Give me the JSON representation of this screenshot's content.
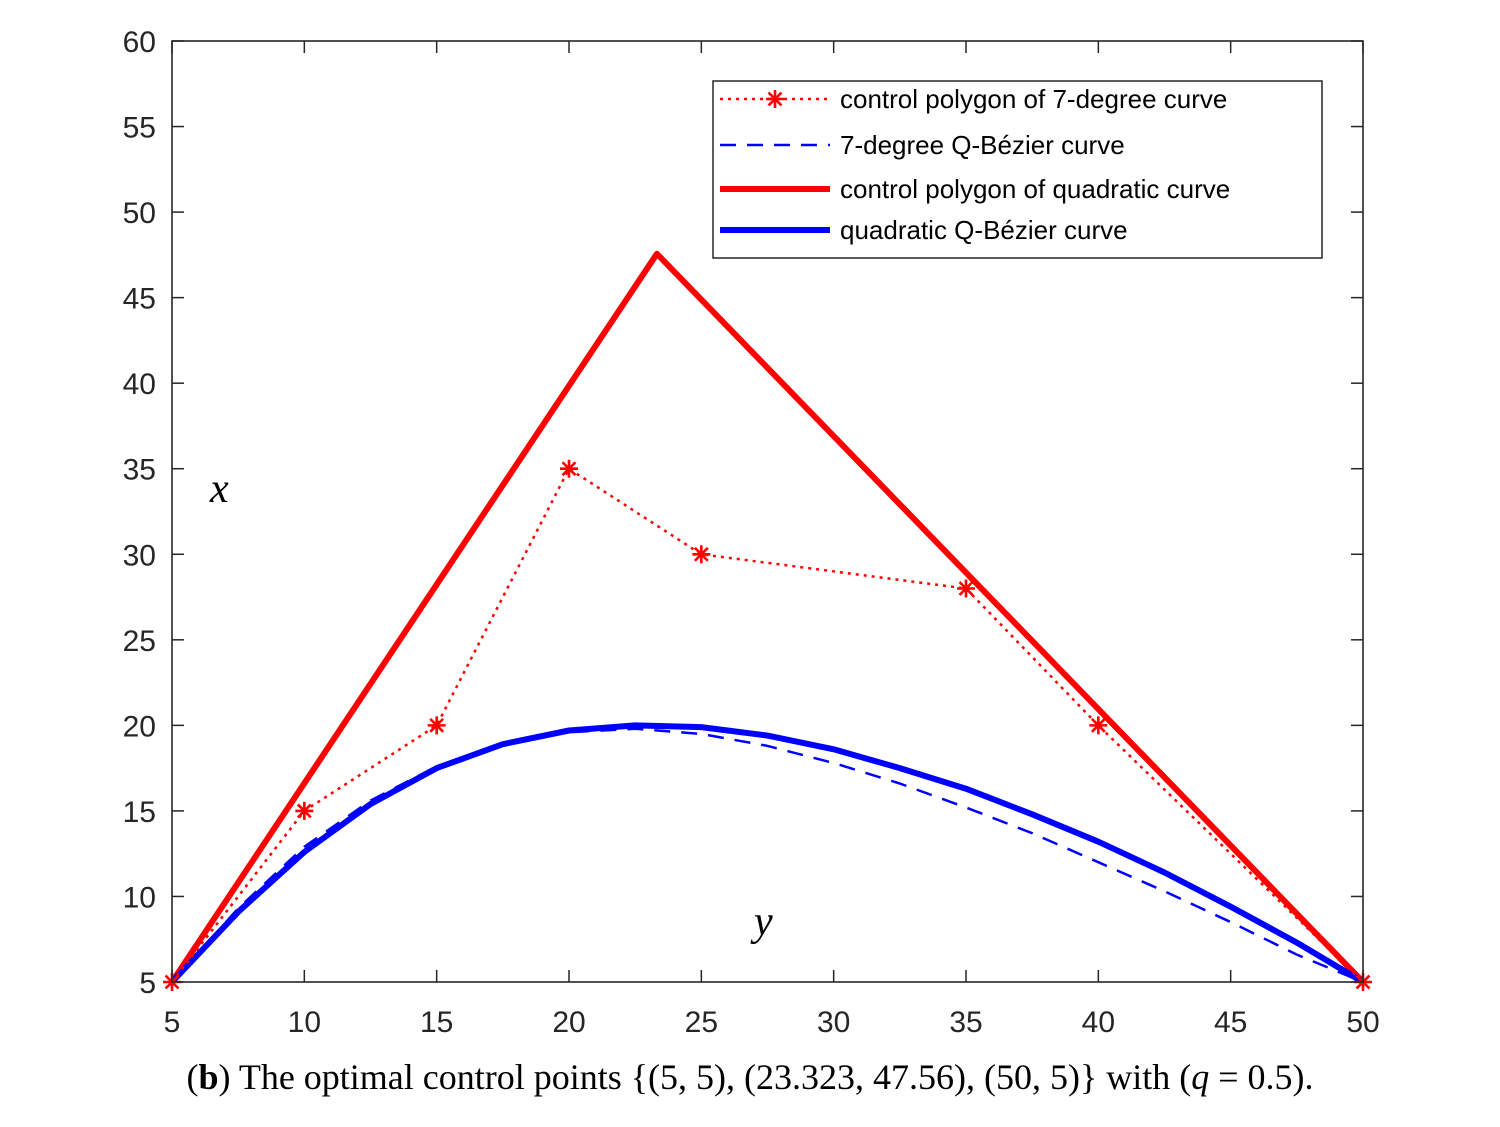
{
  "chart_data": {
    "type": "line",
    "title": "",
    "xlim": [
      5,
      50
    ],
    "ylim": [
      5,
      60
    ],
    "x_ticks": [
      5,
      10,
      15,
      20,
      25,
      30,
      35,
      40,
      45,
      50
    ],
    "y_ticks": [
      5,
      10,
      15,
      20,
      25,
      30,
      35,
      40,
      45,
      50,
      55,
      60
    ],
    "x_tick_labels": [
      "5",
      "10",
      "15",
      "20",
      "25",
      "30",
      "35",
      "40",
      "45",
      "50"
    ],
    "y_tick_labels": [
      "5",
      "10",
      "15",
      "20",
      "25",
      "30",
      "35",
      "40",
      "45",
      "50",
      "55",
      "60"
    ],
    "xlabel": "y",
    "ylabel": "x",
    "legend_position": "top-right",
    "series": [
      {
        "name": "control polygon of 7-degree curve",
        "style": "dotted",
        "marker": "asterisk",
        "color": "#ff0000",
        "x": [
          5,
          10,
          15,
          20,
          25,
          35,
          40,
          50
        ],
        "y": [
          5,
          15,
          20,
          35,
          30,
          28,
          20,
          5
        ]
      },
      {
        "name": "7-degree Q-Bézier curve",
        "style": "dashed",
        "color": "#0000ff",
        "x": [
          5,
          7.5,
          10,
          12.5,
          15,
          17.5,
          20,
          22.5,
          25,
          27.5,
          30,
          32.5,
          35,
          37.5,
          40,
          42.5,
          45,
          47.5,
          50
        ],
        "y": [
          5,
          9.3,
          12.9,
          15.6,
          17.6,
          18.9,
          19.6,
          19.8,
          19.5,
          18.8,
          17.8,
          16.6,
          15.2,
          13.7,
          12.0,
          10.3,
          8.5,
          6.6,
          5
        ]
      },
      {
        "name": "control polygon of quadratic curve",
        "style": "solid-thick",
        "color": "#ff0000",
        "x": [
          5,
          23.323,
          50
        ],
        "y": [
          5,
          47.56,
          5
        ]
      },
      {
        "name": "quadratic Q-Bézier curve",
        "style": "solid-thick",
        "color": "#0000ff",
        "x": [
          5,
          7.5,
          10,
          12.5,
          15,
          17.5,
          20,
          22.5,
          25,
          27.5,
          30,
          32.5,
          35,
          37.5,
          40,
          42.5,
          45,
          47.5,
          50
        ],
        "y": [
          5,
          9.1,
          12.6,
          15.4,
          17.5,
          18.9,
          19.7,
          20.0,
          19.9,
          19.4,
          18.6,
          17.5,
          16.3,
          14.8,
          13.2,
          11.4,
          9.4,
          7.3,
          5
        ]
      }
    ]
  },
  "caption": {
    "open": "(",
    "label": "b",
    "text": ") The optimal control points {(5, 5), (23.323, 47.56), (50, 5)} with (",
    "var": "q",
    "tail": " = 0.5)."
  }
}
